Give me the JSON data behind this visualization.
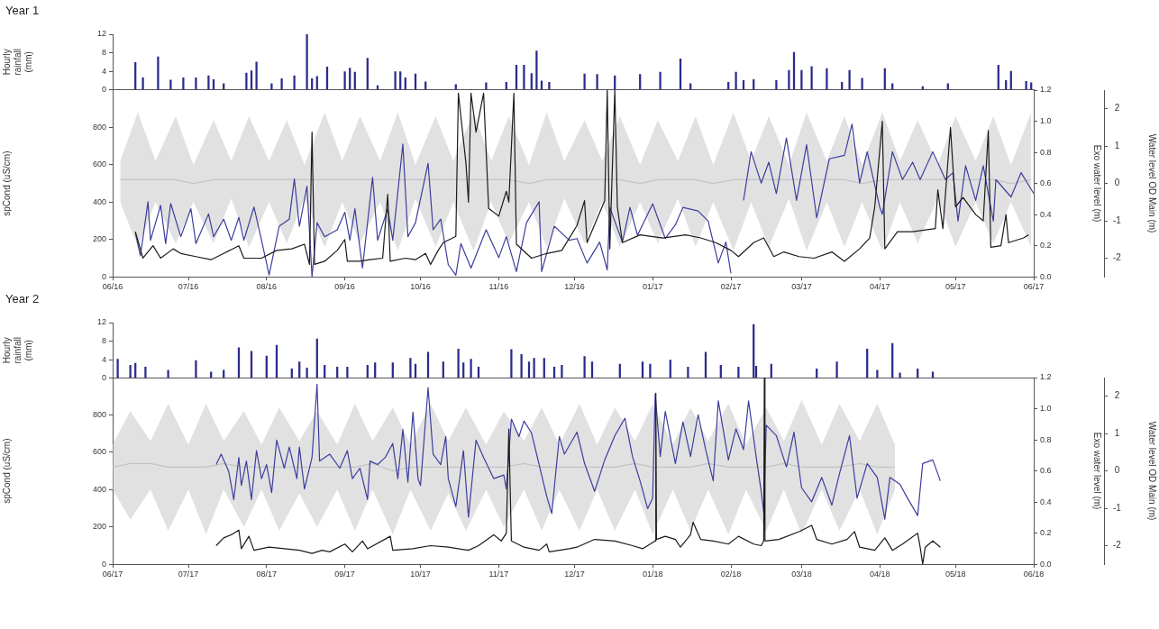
{
  "chart_data": [
    {
      "type": "bar",
      "title": "Year 1",
      "ylabel": "Hourly rainfall (mm)",
      "tick_labels": "y",
      "color": "#2b2b8c",
      "xlim": [
        "2016-06-01",
        "2017-06-01"
      ],
      "ylim": [
        0,
        12
      ],
      "yticks": [
        0,
        4,
        8,
        12
      ],
      "x": [
        "2016-06-10",
        "2016-06-13",
        "2016-06-19",
        "2016-06-24",
        "2016-06-29",
        "2016-07-04",
        "2016-07-09",
        "2016-07-11",
        "2016-07-15",
        "2016-07-24",
        "2016-07-26",
        "2016-07-28",
        "2016-08-03",
        "2016-08-07",
        "2016-08-12",
        "2016-08-17",
        "2016-08-19",
        "2016-08-21",
        "2016-08-25",
        "2016-09-01",
        "2016-09-03",
        "2016-09-05",
        "2016-09-10",
        "2016-09-14",
        "2016-09-21",
        "2016-09-23",
        "2016-09-25",
        "2016-09-29",
        "2016-10-03",
        "2016-10-15",
        "2016-10-27",
        "2016-11-04",
        "2016-11-08",
        "2016-11-11",
        "2016-11-14",
        "2016-11-16",
        "2016-11-18",
        "2016-11-21",
        "2016-12-05",
        "2016-12-10",
        "2016-12-17",
        "2016-12-27",
        "2017-01-04",
        "2017-01-12",
        "2017-01-16",
        "2017-01-31",
        "2017-02-03",
        "2017-02-06",
        "2017-02-10",
        "2017-02-19",
        "2017-02-24",
        "2017-02-26",
        "2017-03-01",
        "2017-03-05",
        "2017-03-11",
        "2017-03-17",
        "2017-03-20",
        "2017-03-25",
        "2017-04-03",
        "2017-04-06",
        "2017-04-18",
        "2017-04-28",
        "2017-05-18",
        "2017-05-21",
        "2017-05-23",
        "2017-05-29",
        "2017-05-31"
      ],
      "values": [
        5.9,
        2.6,
        7.1,
        2.1,
        2.6,
        2.6,
        3.0,
        2.2,
        1.3,
        3.6,
        4.1,
        6.0,
        1.3,
        2.4,
        3.0,
        12,
        2.4,
        2.9,
        4.9,
        3.9,
        4.7,
        3.8,
        6.8,
        0.9,
        3.9,
        3.9,
        2.6,
        3.4,
        1.7,
        1.1,
        1.5,
        1.6,
        5.3,
        5.3,
        3.5,
        8.4,
        1.9,
        1.6,
        3.4,
        3.3,
        3.0,
        3.3,
        3.8,
        6.7,
        1.3,
        1.6,
        3.8,
        2.0,
        2.2,
        2.0,
        4.2,
        8.1,
        4.2,
        5.0,
        4.6,
        1.6,
        4.2,
        2.5,
        4.6,
        1.3,
        0.7,
        1.3,
        5.3,
        2.0,
        4.0,
        1.8,
        1.5
      ]
    },
    {
      "type": "line",
      "ylabel": "spCond (uS/cm)",
      "y2label": "Exo water level (m)",
      "y3label": "Water level OD Main (m)",
      "xlim": [
        "2016-06-01",
        "2017-06-01"
      ],
      "xticks": [
        {
          "value": "2016-06-01",
          "label": "06/16"
        },
        {
          "value": "2016-07-01",
          "label": "07/16"
        },
        {
          "value": "2016-08-01",
          "label": "08/16"
        },
        {
          "value": "2016-09-01",
          "label": "09/16"
        },
        {
          "value": "2016-10-01",
          "label": "10/16"
        },
        {
          "value": "2016-11-01",
          "label": "11/16"
        },
        {
          "value": "2016-12-01",
          "label": "12/16"
        },
        {
          "value": "2017-01-01",
          "label": "01/17"
        },
        {
          "value": "2017-02-01",
          "label": "02/17"
        },
        {
          "value": "2017-03-01",
          "label": "03/17"
        },
        {
          "value": "2017-04-01",
          "label": "04/17"
        },
        {
          "value": "2017-05-01",
          "label": "05/17"
        },
        {
          "value": "2017-06-01",
          "label": "06/17"
        }
      ],
      "ylim": [
        0,
        1000
      ],
      "yticks": [
        0,
        200,
        400,
        600,
        800
      ],
      "y2lim": [
        0,
        1.2
      ],
      "y2ticks": [
        {
          "value": 0,
          "label": "0.0"
        },
        {
          "value": 0.2,
          "label": "0.2"
        },
        {
          "value": 0.4,
          "label": "0.4"
        },
        {
          "value": 0.6,
          "label": "0.6"
        },
        {
          "value": 0.8,
          "label": "0.8"
        },
        {
          "value": 1,
          "label": "1.0"
        },
        {
          "value": 1.2,
          "label": "1.2"
        }
      ],
      "y3lim": [
        -2.5,
        2.5
      ],
      "y3ticks": [
        -2,
        -1,
        0,
        1,
        2
      ],
      "series": [
        {
          "axis": "y3",
          "color": "#c4c4c4",
          "x": [
            "2016-06-04",
            "2016-06-11",
            "2016-06-18",
            "2016-06-26",
            "2016-07-03",
            "2016-07-11",
            "2016-07-18",
            "2016-07-25",
            "2016-08-02",
            "2016-08-09",
            "2016-08-16",
            "2016-08-24",
            "2016-08-31",
            "2016-09-07",
            "2016-09-15",
            "2016-09-22",
            "2016-09-29",
            "2016-10-07",
            "2016-10-14",
            "2016-10-22",
            "2016-10-29",
            "2016-11-05",
            "2016-11-13",
            "2016-11-20",
            "2016-11-27",
            "2016-12-05",
            "2016-12-12",
            "2016-12-19",
            "2016-12-27",
            "2017-01-03",
            "2017-01-11",
            "2017-01-18",
            "2017-01-25",
            "2017-02-02",
            "2017-02-09",
            "2017-02-16",
            "2017-02-24",
            "2017-03-03",
            "2017-03-11",
            "2017-03-18",
            "2017-03-25",
            "2017-04-02",
            "2017-04-09",
            "2017-04-16",
            "2017-04-24",
            "2017-05-01",
            "2017-05-09",
            "2017-05-16",
            "2017-05-23",
            "2017-05-31"
          ],
          "values": [
            0.1,
            0.1,
            0.1,
            0.1,
            0.0,
            0.1,
            0.1,
            0.1,
            0.1,
            0.1,
            0.1,
            0.1,
            0.1,
            0.1,
            0.1,
            0.1,
            0.1,
            0.1,
            0.1,
            0.1,
            0.1,
            0.1,
            0.0,
            0.1,
            0.1,
            0.1,
            0.1,
            0.1,
            0.0,
            0.1,
            0.1,
            0.1,
            0.0,
            0.1,
            0.1,
            0.1,
            0.1,
            0.1,
            0.1,
            0.1,
            0.0,
            0.1,
            0.1,
            0.1,
            0.1,
            0.1,
            0.1,
            0.1,
            0.0,
            0.1
          ],
          "upper": [
            0.6,
            1.9,
            0.6,
            1.8,
            0.5,
            1.7,
            0.6,
            1.8,
            0.6,
            1.7,
            0.5,
            1.9,
            0.6,
            1.8,
            0.6,
            1.9,
            0.5,
            1.8,
            0.6,
            1.9,
            0.6,
            1.8,
            0.5,
            1.9,
            0.6,
            1.7,
            0.6,
            1.8,
            0.5,
            1.7,
            0.6,
            1.8,
            0.5,
            1.9,
            0.6,
            1.8,
            0.5,
            1.9,
            0.6,
            1.8,
            0.5,
            1.9,
            0.6,
            1.7,
            0.5,
            1.8,
            0.6,
            1.8,
            0.5,
            1.9
          ],
          "lower": [
            -0.5,
            -1.7,
            -0.5,
            -1.6,
            -0.5,
            -1.6,
            -0.4,
            -1.7,
            -0.5,
            -1.6,
            -0.4,
            -1.7,
            -0.5,
            -1.6,
            -0.5,
            -1.8,
            -0.4,
            -1.7,
            -0.5,
            -1.8,
            -0.5,
            -1.6,
            -0.5,
            -1.7,
            -0.4,
            -1.6,
            -0.5,
            -1.7,
            -0.5,
            -1.6,
            -0.4,
            -1.7,
            -0.5,
            -1.8,
            -0.5,
            -1.7,
            -0.4,
            -1.8,
            -0.5,
            -1.7,
            -0.5,
            -1.8,
            -0.5,
            -1.6,
            -0.4,
            -1.7,
            -0.5,
            -1.6,
            -0.5,
            -1.7
          ]
        },
        {
          "axis": "y",
          "color": "#3d3d9e",
          "x": [
            "2016-06-10",
            "2016-06-12",
            "2016-06-15",
            "2016-06-16",
            "2016-06-20",
            "2016-06-22",
            "2016-06-24",
            "2016-06-28",
            "2016-07-02",
            "2016-07-04",
            "2016-07-09",
            "2016-07-11",
            "2016-07-15",
            "2016-07-18",
            "2016-07-21",
            "2016-07-23",
            "2016-07-27",
            "2016-07-30",
            "2016-08-02",
            "2016-08-06",
            "2016-08-10",
            "2016-08-12",
            "2016-08-14",
            "2016-08-17",
            "2016-08-19",
            "2016-08-21",
            "2016-08-24",
            "2016-08-29",
            "2016-09-01",
            "2016-09-03",
            "2016-09-05",
            "2016-09-08",
            "2016-09-12",
            "2016-09-14",
            "2016-09-18",
            "2016-09-20",
            "2016-09-24",
            "2016-09-26",
            "2016-09-29",
            "2016-10-04",
            "2016-10-06",
            "2016-10-09",
            "2016-10-12",
            "2016-10-15",
            "2016-10-17",
            "2016-10-21",
            "2016-10-27",
            "2016-11-01",
            "2016-11-04",
            "2016-11-08",
            "2016-11-12",
            "2016-11-17",
            "2016-11-18",
            "2016-11-23",
            "2016-11-29",
            "2016-12-02",
            "2016-12-06",
            "2016-12-11",
            "2016-12-14",
            "2016-12-15",
            "2016-12-20",
            "2016-12-23",
            "2016-12-26",
            "2017-01-01",
            "2017-01-06",
            "2017-01-10",
            "2017-01-13",
            "2017-01-19",
            "2017-01-23",
            "2017-01-27",
            "2017-01-30",
            "2017-02-01",
            "2017-02-03",
            "2017-02-06",
            "2017-02-09",
            "2017-02-13",
            "2017-02-16",
            "2017-02-19",
            "2017-02-23",
            "2017-02-27",
            "2017-03-03",
            "2017-03-07",
            "2017-03-12",
            "2017-03-18",
            "2017-03-21",
            "2017-03-24",
            "2017-03-27",
            "2017-04-01",
            "2017-04-02",
            "2017-04-06",
            "2017-04-10",
            "2017-04-14",
            "2017-04-17",
            "2017-04-22",
            "2017-04-27",
            "2017-04-30",
            "2017-05-02",
            "2017-05-05",
            "2017-05-09",
            "2017-05-12",
            "2017-05-16",
            "2017-05-17",
            "2017-05-23",
            "2017-05-27",
            "2017-06-01"
          ],
          "values": [
            234,
            112,
            402,
            196,
            383,
            178,
            393,
            215,
            365,
            178,
            337,
            215,
            309,
            196,
            318,
            196,
            374,
            196,
            10,
            271,
            309,
            524,
            271,
            486,
            0,
            290,
            215,
            252,
            346,
            196,
            365,
            47,
            533,
            196,
            365,
            196,
            711,
            215,
            290,
            608,
            252,
            309,
            65,
            9,
            178,
            47,
            252,
            103,
            215,
            28,
            290,
            402,
            28,
            271,
            196,
            205,
            74,
            186,
            37,
            372,
            186,
            372,
            223,
            391,
            205,
            279,
            372,
            353,
            298,
            74,
            186,
            19,
            null,
            409,
            670,
            502,
            614,
            446,
            744,
            409,
            707,
            316,
            632,
            651,
            818,
            502,
            670,
            372,
            335,
            670,
            521,
            614,
            521,
            670,
            521,
            558,
            298,
            595,
            409,
            595,
            298,
            521,
            428,
            558,
            446
          ]
        },
        {
          "axis": "y2",
          "color": "#1a1a1a",
          "x": [
            "2016-06-10",
            "2016-06-13",
            "2016-06-17",
            "2016-06-20",
            "2016-06-25",
            "2016-06-28",
            "2016-07-04",
            "2016-07-10",
            "2016-07-15",
            "2016-07-21",
            "2016-07-23",
            "2016-07-30",
            "2016-08-05",
            "2016-08-11",
            "2016-08-16",
            "2016-08-18",
            "2016-08-19",
            "2016-08-20",
            "2016-08-24",
            "2016-08-29",
            "2016-09-01",
            "2016-09-02",
            "2016-09-07",
            "2016-09-11",
            "2016-09-16",
            "2016-09-18",
            "2016-09-19",
            "2016-09-25",
            "2016-09-29",
            "2016-10-03",
            "2016-10-05",
            "2016-10-08",
            "2016-10-10",
            "2016-10-15",
            "2016-10-16",
            "2016-10-19",
            "2016-10-20",
            "2016-10-21",
            "2016-10-23",
            "2016-10-26",
            "2016-10-28",
            "2016-11-01",
            "2016-11-04",
            "2016-11-05",
            "2016-11-07",
            "2016-11-08",
            "2016-11-14",
            "2016-11-20",
            "2016-11-26",
            "2016-12-02",
            "2016-12-05",
            "2016-12-06",
            "2016-12-13",
            "2016-12-14",
            "2016-12-15",
            "2016-12-17",
            "2016-12-18",
            "2016-12-20",
            "2016-12-27",
            "2017-01-05",
            "2017-01-14",
            "2017-01-20",
            "2017-01-26",
            "2017-02-01",
            "2017-02-04",
            "2017-02-10",
            "2017-02-14",
            "2017-02-18",
            "2017-02-22",
            "2017-02-28",
            "2017-03-06",
            "2017-03-13",
            "2017-03-18",
            "2017-03-24",
            "2017-03-28",
            "2017-03-30",
            "2017-04-02",
            "2017-04-03",
            "2017-04-08",
            "2017-04-14",
            "2017-04-23",
            "2017-04-24",
            "2017-04-26",
            "2017-04-29",
            "2017-05-01",
            "2017-05-04",
            "2017-05-09",
            "2017-05-12",
            "2017-05-14",
            "2017-05-15",
            "2017-05-19",
            "2017-05-21",
            "2017-05-22",
            "2017-05-28",
            "2017-05-30"
          ],
          "values": [
            0.29,
            0.12,
            0.2,
            0.12,
            0.18,
            0.15,
            0.13,
            0.11,
            0.15,
            0.2,
            0.12,
            0.12,
            0.17,
            0.18,
            0.21,
            0.08,
            0.93,
            0.08,
            0.1,
            0.17,
            0.24,
            0.1,
            0.1,
            0.11,
            0.12,
            0.53,
            0.1,
            0.12,
            0.11,
            0.15,
            0.08,
            0.17,
            0.22,
            0.26,
            1.18,
            0.73,
            0.48,
            1.18,
            0.93,
            1.18,
            0.44,
            0.39,
            0.55,
            0.48,
            1.18,
            0.21,
            0.12,
            0.15,
            0.17,
            0.33,
            0.49,
            0.22,
            0.49,
            1.2,
            0.18,
            1.2,
            0.45,
            0.22,
            0.27,
            0.25,
            0.27,
            0.25,
            0.22,
            0.17,
            0.13,
            0.22,
            0.25,
            0.13,
            0.16,
            0.13,
            0.12,
            0.16,
            0.1,
            0.18,
            0.25,
            0.45,
            1.0,
            0.18,
            0.29,
            0.29,
            0.31,
            0.56,
            0.31,
            0.96,
            0.45,
            0.51,
            0.4,
            0.36,
            0.94,
            0.19,
            0.2,
            0.4,
            0.22,
            0.25,
            0.27
          ]
        }
      ]
    },
    {
      "type": "bar",
      "title": "Year 2",
      "ylabel": "Hourly rainfall (mm)",
      "tick_labels": "y",
      "color": "#2b2b8c",
      "xlim": [
        "2017-06-01",
        "2018-06-01"
      ],
      "ylim": [
        0,
        12
      ],
      "yticks": [
        0,
        4,
        8,
        12
      ],
      "x": [
        "2017-06-03",
        "2017-06-08",
        "2017-06-10",
        "2017-06-14",
        "2017-06-23",
        "2017-07-04",
        "2017-07-10",
        "2017-07-15",
        "2017-07-21",
        "2017-07-26",
        "2017-08-01",
        "2017-08-05",
        "2017-08-11",
        "2017-08-14",
        "2017-08-17",
        "2017-08-21",
        "2017-08-24",
        "2017-08-29",
        "2017-09-02",
        "2017-09-10",
        "2017-09-13",
        "2017-09-20",
        "2017-09-27",
        "2017-09-29",
        "2017-10-04",
        "2017-10-10",
        "2017-10-16",
        "2017-10-18",
        "2017-10-21",
        "2017-10-24",
        "2017-11-06",
        "2017-11-10",
        "2017-11-13",
        "2017-11-15",
        "2017-11-19",
        "2017-11-23",
        "2017-11-26",
        "2017-12-05",
        "2017-12-08",
        "2017-12-19",
        "2017-12-28",
        "2017-12-31",
        "2018-01-08",
        "2018-01-15",
        "2018-01-22",
        "2018-01-28",
        "2018-02-04",
        "2018-02-10",
        "2018-02-11",
        "2018-02-17",
        "2018-03-07",
        "2018-03-15",
        "2018-03-27",
        "2018-03-31",
        "2018-04-06",
        "2018-04-09",
        "2018-04-16",
        "2018-04-22"
      ],
      "values": [
        4.1,
        2.8,
        3.2,
        2.4,
        1.7,
        3.8,
        1.3,
        1.7,
        6.6,
        5.8,
        4.8,
        7.1,
        2.0,
        3.5,
        2.2,
        8.5,
        2.8,
        2.4,
        2.4,
        2.8,
        3.3,
        3.3,
        4.3,
        3.0,
        5.6,
        3.5,
        6.3,
        3.3,
        4.1,
        2.4,
        6.2,
        5.1,
        3.5,
        4.3,
        4.3,
        2.4,
        2.8,
        4.7,
        3.5,
        3.0,
        3.5,
        3.0,
        3.9,
        2.4,
        5.6,
        2.8,
        2.4,
        11.6,
        2.6,
        3.0,
        2.0,
        3.5,
        6.3,
        1.7,
        7.5,
        1.1,
        2.0,
        1.3
      ]
    },
    {
      "type": "line",
      "ylabel": "spCond (uS/cm)",
      "y2label": "Exo water level (m)",
      "y3label": "Water level OD Main (m)",
      "xlim": [
        "2017-06-01",
        "2018-06-01"
      ],
      "xticks": [
        {
          "value": "2017-06-01",
          "label": "06/17"
        },
        {
          "value": "2017-07-01",
          "label": "07/17"
        },
        {
          "value": "2017-08-01",
          "label": "08/17"
        },
        {
          "value": "2017-09-01",
          "label": "09/17"
        },
        {
          "value": "2017-10-01",
          "label": "10/17"
        },
        {
          "value": "2017-11-01",
          "label": "11/17"
        },
        {
          "value": "2017-12-01",
          "label": "12/17"
        },
        {
          "value": "2018-01-01",
          "label": "01/18"
        },
        {
          "value": "2018-02-01",
          "label": "02/18"
        },
        {
          "value": "2018-03-01",
          "label": "03/18"
        },
        {
          "value": "2018-04-01",
          "label": "04/18"
        },
        {
          "value": "2018-05-01",
          "label": "05/18"
        },
        {
          "value": "2018-06-01",
          "label": "06/18"
        }
      ],
      "ylim": [
        0,
        1000
      ],
      "yticks": [
        0,
        200,
        400,
        600,
        800
      ],
      "y2lim": [
        0,
        1.2
      ],
      "y2ticks": [
        {
          "value": 0,
          "label": "0.0"
        },
        {
          "value": 0.2,
          "label": "0.2"
        },
        {
          "value": 0.4,
          "label": "0.4"
        },
        {
          "value": 0.6,
          "label": "0.6"
        },
        {
          "value": 0.8,
          "label": "0.8"
        },
        {
          "value": 1,
          "label": "1.0"
        },
        {
          "value": 1.2,
          "label": "1.2"
        }
      ],
      "y3lim": [
        -2.5,
        2.5
      ],
      "y3ticks": [
        -2,
        -1,
        0,
        1,
        2
      ],
      "series": [
        {
          "axis": "y3",
          "color": "#c4c4c4",
          "x": [
            "2017-06-01",
            "2017-06-08",
            "2017-06-16",
            "2017-06-23",
            "2017-07-01",
            "2017-07-08",
            "2017-07-15",
            "2017-07-23",
            "2017-07-30",
            "2017-08-06",
            "2017-08-14",
            "2017-08-21",
            "2017-08-29",
            "2017-09-05",
            "2017-09-12",
            "2017-09-20",
            "2017-09-27",
            "2017-10-05",
            "2017-10-12",
            "2017-10-19",
            "2017-10-27",
            "2017-11-03",
            "2017-11-11",
            "2017-11-18",
            "2017-11-25",
            "2017-12-03",
            "2017-12-10",
            "2017-12-17",
            "2017-12-25",
            "2018-01-01",
            "2018-01-09",
            "2018-01-16",
            "2018-01-23",
            "2018-01-31",
            "2018-02-07",
            "2018-02-15",
            "2018-02-22",
            "2018-03-01",
            "2018-03-09",
            "2018-03-16",
            "2018-03-24",
            "2018-03-31",
            "2018-04-07"
          ],
          "values": [
            0.1,
            0.2,
            0.2,
            0.1,
            0.1,
            0.1,
            0.2,
            0.1,
            0.1,
            0.1,
            0.1,
            0.1,
            0.1,
            0.1,
            0.2,
            0.0,
            0.1,
            0.1,
            0.1,
            0.1,
            0.1,
            0.1,
            0.2,
            0.1,
            0.1,
            0.1,
            0.1,
            0.1,
            0.2,
            0.1,
            0.1,
            0.1,
            0.2,
            0.1,
            0.1,
            0.1,
            0.2,
            0.1,
            0.1,
            0.1,
            0.2,
            0.1,
            0.1
          ],
          "upper": [
            0.7,
            1.6,
            0.8,
            1.8,
            0.7,
            1.8,
            0.8,
            1.6,
            0.7,
            1.7,
            0.8,
            1.6,
            0.7,
            1.8,
            0.8,
            1.7,
            0.7,
            1.8,
            0.8,
            1.7,
            0.7,
            1.6,
            0.8,
            1.7,
            0.7,
            1.8,
            0.7,
            1.7,
            0.8,
            1.8,
            0.7,
            1.7,
            0.8,
            1.8,
            0.7,
            1.7,
            0.8,
            1.9,
            0.7,
            1.8,
            0.8,
            1.8,
            0.7
          ],
          "lower": [
            -0.5,
            -1.3,
            -0.5,
            -1.6,
            -0.5,
            -1.7,
            -0.5,
            -1.5,
            -0.5,
            -1.6,
            -0.6,
            -1.5,
            -0.5,
            -1.6,
            -0.5,
            -1.7,
            -0.5,
            -1.6,
            -0.6,
            -1.6,
            -0.5,
            -1.5,
            -0.5,
            -1.6,
            -0.5,
            -1.6,
            -0.5,
            -1.6,
            -0.5,
            -1.7,
            -0.5,
            -1.6,
            -0.5,
            -1.7,
            -0.5,
            -1.6,
            -0.5,
            -1.7,
            -0.5,
            -1.6,
            -0.5,
            -1.7,
            -0.5
          ]
        },
        {
          "axis": "y",
          "color": "#3d3d9e",
          "x": [
            "2017-07-12",
            "2017-07-14",
            "2017-07-17",
            "2017-07-19",
            "2017-07-21",
            "2017-07-22",
            "2017-07-24",
            "2017-07-26",
            "2017-07-28",
            "2017-07-30",
            "2017-08-01",
            "2017-08-03",
            "2017-08-05",
            "2017-08-08",
            "2017-08-10",
            "2017-08-13",
            "2017-08-14",
            "2017-08-16",
            "2017-08-19",
            "2017-08-21",
            "2017-08-22",
            "2017-08-26",
            "2017-08-30",
            "2017-09-02",
            "2017-09-04",
            "2017-09-07",
            "2017-09-10",
            "2017-09-11",
            "2017-09-14",
            "2017-09-17",
            "2017-09-20",
            "2017-09-22",
            "2017-09-24",
            "2017-09-26",
            "2017-09-28",
            "2017-09-30",
            "2017-10-01",
            "2017-10-04",
            "2017-10-06",
            "2017-10-09",
            "2017-10-11",
            "2017-10-12",
            "2017-10-15",
            "2017-10-18",
            "2017-10-20",
            "2017-10-23",
            "2017-10-26",
            "2017-10-30",
            "2017-11-03",
            "2017-11-04",
            "2017-11-06",
            "2017-11-09",
            "2017-11-11",
            "2017-11-14",
            "2017-11-17",
            "2017-11-20",
            "2017-11-22",
            "2017-11-25",
            "2017-11-27",
            "2017-12-02",
            "2017-12-05",
            "2017-12-09",
            "2017-12-13",
            "2017-12-17",
            "2017-12-21",
            "2017-12-24",
            "2017-12-27",
            "2017-12-30",
            "2018-01-01",
            "2018-01-02",
            "2018-01-04",
            "2018-01-06",
            "2018-01-10",
            "2018-01-13",
            "2018-01-16",
            "2018-01-19",
            "2018-01-22",
            "2018-01-25",
            "2018-01-27",
            "2018-01-31",
            "2018-02-03",
            "2018-02-06",
            "2018-02-08",
            "2018-02-11",
            "2018-02-13",
            "2018-02-14",
            "2018-02-15",
            "2018-02-19",
            "2018-02-23",
            "2018-02-26",
            "2018-03-01",
            "2018-03-05",
            "2018-03-09",
            "2018-03-13",
            "2018-03-16",
            "2018-03-20",
            "2018-03-23",
            "2018-03-27",
            "2018-03-31",
            "2018-04-03",
            "2018-04-05",
            "2018-04-09",
            "2018-04-12",
            "2018-04-16",
            "2018-04-18",
            "2018-04-22",
            "2018-04-25"
          ],
          "values": [
            534,
            590,
            497,
            347,
            572,
            422,
            553,
            347,
            609,
            459,
            534,
            384,
            665,
            515,
            628,
            459,
            628,
            403,
            572,
            965,
            553,
            590,
            515,
            609,
            459,
            515,
            347,
            553,
            534,
            572,
            647,
            459,
            722,
            440,
            815,
            459,
            422,
            946,
            590,
            534,
            684,
            459,
            309,
            609,
            253,
            665,
            572,
            459,
            478,
            403,
            778,
            684,
            768,
            703,
            534,
            365,
            272,
            684,
            590,
            708,
            540,
            391,
            559,
            689,
            782,
            577,
            447,
            298,
            354,
            912,
            577,
            819,
            540,
            763,
            577,
            801,
            614,
            447,
            875,
            559,
            726,
            614,
            875,
            577,
            391,
            279,
            745,
            689,
            521,
            708,
            410,
            335,
            465,
            317,
            484,
            689,
            354,
            540,
            465,
            242,
            465,
            428,
            354,
            261,
            540,
            559,
            447
          ]
        },
        {
          "axis": "y2",
          "color": "#1a1a1a",
          "x": [
            "2017-07-12",
            "2017-07-15",
            "2017-07-18",
            "2017-07-21",
            "2017-07-22",
            "2017-07-25",
            "2017-07-27",
            "2017-08-02",
            "2017-08-08",
            "2017-08-14",
            "2017-08-19",
            "2017-08-23",
            "2017-08-26",
            "2017-09-01",
            "2017-09-04",
            "2017-09-08",
            "2017-09-10",
            "2017-09-19",
            "2017-09-20",
            "2017-09-28",
            "2017-10-05",
            "2017-10-12",
            "2017-10-20",
            "2017-10-24",
            "2017-10-30",
            "2017-11-02",
            "2017-11-04",
            "2017-11-05",
            "2017-11-06",
            "2017-11-11",
            "2017-11-17",
            "2017-11-20",
            "2017-11-21",
            "2017-11-29",
            "2017-12-02",
            "2017-12-09",
            "2017-12-17",
            "2017-12-24",
            "2017-12-28",
            "2018-01-02T00:00",
            "2018-01-02T06:00",
            "2018-01-02T12:00",
            "2018-01-06",
            "2018-01-10",
            "2018-01-12",
            "2018-01-16",
            "2018-01-17",
            "2018-01-20",
            "2018-01-25",
            "2018-01-31",
            "2018-02-04",
            "2018-02-10",
            "2018-02-13",
            "2018-02-14T00:00",
            "2018-02-14T06:00",
            "2018-02-14T12:00",
            "2018-02-20",
            "2018-02-28",
            "2018-03-05",
            "2018-03-07",
            "2018-03-13",
            "2018-03-19",
            "2018-03-22",
            "2018-03-24",
            "2018-03-30",
            "2018-04-03",
            "2018-04-06",
            "2018-04-10",
            "2018-04-16",
            "2018-04-17",
            "2018-04-18",
            "2018-04-19",
            "2018-04-22",
            "2018-04-25"
          ],
          "values": [
            0.12,
            0.17,
            0.19,
            0.22,
            0.1,
            0.18,
            0.09,
            0.11,
            0.1,
            0.09,
            0.07,
            0.09,
            0.08,
            0.13,
            0.08,
            0.15,
            0.1,
            0.18,
            0.09,
            0.1,
            0.12,
            0.11,
            0.09,
            0.12,
            0.19,
            0.15,
            0.2,
            0.87,
            0.15,
            0.11,
            0.09,
            0.13,
            0.08,
            0.1,
            0.11,
            0.16,
            0.15,
            0.12,
            0.1,
            0.15,
            1.1,
            0.16,
            0.18,
            0.16,
            0.11,
            0.19,
            0.27,
            0.16,
            0.15,
            0.13,
            0.18,
            0.13,
            0.12,
            0.15,
            1.2,
            0.15,
            0.16,
            0.21,
            0.25,
            0.16,
            0.13,
            0.16,
            0.21,
            0.11,
            0.09,
            0.17,
            0.09,
            0.13,
            0.2,
            0.11,
            0.0,
            0.11,
            0.15,
            0.11
          ]
        }
      ]
    }
  ]
}
